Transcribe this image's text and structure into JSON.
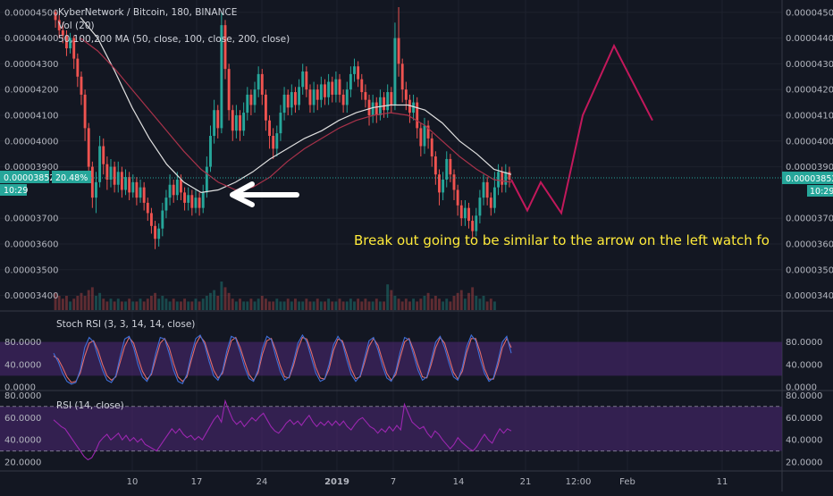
{
  "chart_data": {
    "type": "candlestick",
    "header": {
      "symbol_line": "KyberNetwork / Bitcoin, 180, BINANCE",
      "vol_label": "Vol (20)",
      "ma_label": "50,100,200 MA (50, close, 100, close, 200, close)"
    },
    "price_axis": {
      "ticks": [
        4.5e-05,
        4.4e-05,
        4.3e-05,
        4.2e-05,
        4.1e-05,
        4e-05,
        3.9e-05,
        3.7e-05,
        3.6e-05,
        3.5e-05,
        3.4e-05
      ],
      "tick_labels": [
        "0.00004500",
        "0.00004400",
        "0.00004300",
        "0.00004200",
        "0.00004100",
        "0.00004000",
        "0.00003900",
        "0.00003700",
        "0.00003600",
        "0.00003500",
        "0.00003400"
      ],
      "ylim": [
        3.35e-05,
        4.52e-05
      ],
      "current_price_label": "0.00003852",
      "countdown_label": "10:29",
      "percent_label": "20.48%"
    },
    "time_axis": {
      "labels": [
        "10",
        "17",
        "24",
        "2019",
        "7",
        "14",
        "21",
        "12:00",
        "Feb",
        "11"
      ]
    },
    "candles": [
      [
        4.5e-05,
        4.47e-05,
        4.51e-05,
        4.44e-05
      ],
      [
        4.47e-05,
        4.43e-05,
        4.49e-05,
        4.4e-05
      ],
      [
        4.43e-05,
        4.41e-05,
        4.46e-05,
        4.38e-05
      ],
      [
        4.41e-05,
        4.36e-05,
        4.43e-05,
        4.33e-05
      ],
      [
        4.36e-05,
        4.4e-05,
        4.42e-05,
        4.34e-05
      ],
      [
        4.4e-05,
        4.32e-05,
        4.41e-05,
        4.28e-05
      ],
      [
        4.32e-05,
        4.25e-05,
        4.34e-05,
        4.21e-05
      ],
      [
        4.25e-05,
        4.18e-05,
        4.27e-05,
        4.14e-05
      ],
      [
        4.18e-05,
        4.05e-05,
        4.2e-05,
        4e-05
      ],
      [
        4.05e-05,
        3.9e-05,
        4.07e-05,
        3.85e-05
      ],
      [
        3.9e-05,
        3.78e-05,
        3.92e-05,
        3.74e-05
      ],
      [
        3.78e-05,
        3.84e-05,
        3.88e-05,
        3.72e-05
      ],
      [
        3.84e-05,
        3.98e-05,
        4.02e-05,
        3.82e-05
      ],
      [
        3.98e-05,
        3.91e-05,
        4.01e-05,
        3.87e-05
      ],
      [
        3.91e-05,
        3.85e-05,
        3.94e-05,
        3.81e-05
      ],
      [
        3.85e-05,
        3.9e-05,
        3.93e-05,
        3.82e-05
      ],
      [
        3.9e-05,
        3.83e-05,
        3.92e-05,
        3.8e-05
      ],
      [
        3.83e-05,
        3.88e-05,
        3.92e-05,
        3.8e-05
      ],
      [
        3.88e-05,
        3.81e-05,
        3.9e-05,
        3.78e-05
      ],
      [
        3.81e-05,
        3.86e-05,
        3.89e-05,
        3.79e-05
      ],
      [
        3.86e-05,
        3.8e-05,
        3.88e-05,
        3.77e-05
      ],
      [
        3.8e-05,
        3.84e-05,
        3.87e-05,
        3.78e-05
      ],
      [
        3.84e-05,
        3.78e-05,
        3.86e-05,
        3.75e-05
      ],
      [
        3.78e-05,
        3.82e-05,
        3.85e-05,
        3.76e-05
      ],
      [
        3.82e-05,
        3.76e-05,
        3.84e-05,
        3.73e-05
      ],
      [
        3.76e-05,
        3.72e-05,
        3.78e-05,
        3.69e-05
      ],
      [
        3.72e-05,
        3.67e-05,
        3.74e-05,
        3.64e-05
      ],
      [
        3.67e-05,
        3.62e-05,
        3.69e-05,
        3.58e-05
      ],
      [
        3.62e-05,
        3.66e-05,
        3.68e-05,
        3.59e-05
      ],
      [
        3.66e-05,
        3.73e-05,
        3.76e-05,
        3.63e-05
      ],
      [
        3.73e-05,
        3.78e-05,
        3.81e-05,
        3.7e-05
      ],
      [
        3.78e-05,
        3.83e-05,
        3.87e-05,
        3.75e-05
      ],
      [
        3.83e-05,
        3.79e-05,
        3.85e-05,
        3.76e-05
      ],
      [
        3.79e-05,
        3.85e-05,
        3.88e-05,
        3.77e-05
      ],
      [
        3.85e-05,
        3.8e-05,
        3.87e-05,
        3.77e-05
      ],
      [
        3.8e-05,
        3.76e-05,
        3.82e-05,
        3.73e-05
      ],
      [
        3.76e-05,
        3.79e-05,
        3.82e-05,
        3.73e-05
      ],
      [
        3.79e-05,
        3.74e-05,
        3.81e-05,
        3.71e-05
      ],
      [
        3.74e-05,
        3.78e-05,
        3.81e-05,
        3.72e-05
      ],
      [
        3.78e-05,
        3.74e-05,
        3.8e-05,
        3.71e-05
      ],
      [
        3.74e-05,
        3.8e-05,
        3.83e-05,
        3.72e-05
      ],
      [
        3.8e-05,
        3.9e-05,
        3.94e-05,
        3.78e-05
      ],
      [
        3.9e-05,
        4.02e-05,
        4.06e-05,
        3.88e-05
      ],
      [
        4.02e-05,
        4.12e-05,
        4.16e-05,
        3.99e-05
      ],
      [
        4.12e-05,
        4.05e-05,
        4.14e-05,
        4.01e-05
      ],
      [
        4.05e-05,
        4.45e-05,
        4.5e-05,
        4.03e-05
      ],
      [
        4.45e-05,
        4.28e-05,
        4.47e-05,
        4.24e-05
      ],
      [
        4.28e-05,
        4.12e-05,
        4.3e-05,
        4.08e-05
      ],
      [
        4.12e-05,
        4.04e-05,
        4.14e-05,
        4e-05
      ],
      [
        4.04e-05,
        4.1e-05,
        4.14e-05,
        4.01e-05
      ],
      [
        4.1e-05,
        4.04e-05,
        4.12e-05,
        4e-05
      ],
      [
        4.04e-05,
        4.11e-05,
        4.15e-05,
        4.02e-05
      ],
      [
        4.11e-05,
        4.18e-05,
        4.21e-05,
        4.08e-05
      ],
      [
        4.18e-05,
        4.14e-05,
        4.2e-05,
        4.1e-05
      ],
      [
        4.14e-05,
        4.2e-05,
        4.23e-05,
        4.11e-05
      ],
      [
        4.2e-05,
        4.26e-05,
        4.29e-05,
        4.17e-05
      ],
      [
        4.26e-05,
        4.18e-05,
        4.28e-05,
        4.14e-05
      ],
      [
        4.18e-05,
        4.08e-05,
        4.2e-05,
        4.04e-05
      ],
      [
        4.08e-05,
        4.02e-05,
        4.1e-05,
        3.97e-05
      ],
      [
        4.02e-05,
        3.97e-05,
        4.05e-05,
        3.93e-05
      ],
      [
        3.97e-05,
        4.03e-05,
        4.06e-05,
        3.94e-05
      ],
      [
        4.03e-05,
        4.11e-05,
        4.14e-05,
        4e-05
      ],
      [
        4.11e-05,
        4.18e-05,
        4.21e-05,
        4.08e-05
      ],
      [
        4.18e-05,
        4.13e-05,
        4.2e-05,
        4.1e-05
      ],
      [
        4.13e-05,
        4.19e-05,
        4.22e-05,
        4.1e-05
      ],
      [
        4.19e-05,
        4.14e-05,
        4.21e-05,
        4.11e-05
      ],
      [
        4.14e-05,
        4.21e-05,
        4.24e-05,
        4.12e-05
      ],
      [
        4.21e-05,
        4.27e-05,
        4.3e-05,
        4.18e-05
      ],
      [
        4.27e-05,
        4.2e-05,
        4.29e-05,
        4.17e-05
      ],
      [
        4.2e-05,
        4.14e-05,
        4.22e-05,
        4.11e-05
      ],
      [
        4.14e-05,
        4.2e-05,
        4.23e-05,
        4.11e-05
      ],
      [
        4.2e-05,
        4.16e-05,
        4.22e-05,
        4.12e-05
      ],
      [
        4.16e-05,
        4.22e-05,
        4.25e-05,
        4.13e-05
      ],
      [
        4.22e-05,
        4.17e-05,
        4.24e-05,
        4.14e-05
      ],
      [
        4.17e-05,
        4.23e-05,
        4.26e-05,
        4.14e-05
      ],
      [
        4.23e-05,
        4.18e-05,
        4.25e-05,
        4.15e-05
      ],
      [
        4.18e-05,
        4.24e-05,
        4.27e-05,
        4.15e-05
      ],
      [
        4.24e-05,
        4.18e-05,
        4.26e-05,
        4.15e-05
      ],
      [
        4.18e-05,
        4.14e-05,
        4.2e-05,
        4.11e-05
      ],
      [
        4.14e-05,
        4.2e-05,
        4.23e-05,
        4.11e-05
      ],
      [
        4.2e-05,
        4.26e-05,
        4.29e-05,
        4.17e-05
      ],
      [
        4.26e-05,
        4.29e-05,
        4.32e-05,
        4.23e-05
      ],
      [
        4.29e-05,
        4.24e-05,
        4.31e-05,
        4.21e-05
      ],
      [
        4.24e-05,
        4.19e-05,
        4.26e-05,
        4.16e-05
      ],
      [
        4.19e-05,
        4.16e-05,
        4.22e-05,
        4.13e-05
      ],
      [
        4.16e-05,
        4.1e-05,
        4.18e-05,
        4.06e-05
      ],
      [
        4.1e-05,
        4.15e-05,
        4.18e-05,
        4.07e-05
      ],
      [
        4.15e-05,
        4.1e-05,
        4.17e-05,
        4.07e-05
      ],
      [
        4.1e-05,
        4.17e-05,
        4.2e-05,
        4.08e-05
      ],
      [
        4.17e-05,
        4.12e-05,
        4.19e-05,
        4.09e-05
      ],
      [
        4.12e-05,
        4.19e-05,
        4.22e-05,
        4.09e-05
      ],
      [
        4.19e-05,
        4.14e-05,
        4.21e-05,
        4.11e-05
      ],
      [
        4.14e-05,
        4.4e-05,
        4.46e-05,
        4.12e-05
      ],
      [
        4.4e-05,
        4.3e-05,
        4.52e-05,
        4.25e-05
      ],
      [
        4.3e-05,
        4.2e-05,
        4.32e-05,
        4.15e-05
      ],
      [
        4.2e-05,
        4.16e-05,
        4.23e-05,
        4.12e-05
      ],
      [
        4.16e-05,
        4.11e-05,
        4.18e-05,
        4.07e-05
      ],
      [
        4.11e-05,
        4.15e-05,
        4.18e-05,
        4.08e-05
      ],
      [
        4.15e-05,
        4.05e-05,
        4.17e-05,
        4.01e-05
      ],
      [
        4.05e-05,
        3.98e-05,
        4.07e-05,
        3.94e-05
      ],
      [
        3.98e-05,
        4.06e-05,
        4.09e-05,
        3.95e-05
      ],
      [
        4.06e-05,
        4.01e-05,
        4.08e-05,
        3.97e-05
      ],
      [
        4.01e-05,
        3.94e-05,
        4.03e-05,
        3.9e-05
      ],
      [
        3.94e-05,
        3.87e-05,
        3.96e-05,
        3.83e-05
      ],
      [
        3.87e-05,
        3.8e-05,
        3.89e-05,
        3.75e-05
      ],
      [
        3.8e-05,
        3.85e-05,
        3.88e-05,
        3.77e-05
      ],
      [
        3.85e-05,
        3.93e-05,
        3.96e-05,
        3.82e-05
      ],
      [
        3.93e-05,
        3.87e-05,
        3.95e-05,
        3.84e-05
      ],
      [
        3.87e-05,
        3.81e-05,
        3.89e-05,
        3.77e-05
      ],
      [
        3.81e-05,
        3.75e-05,
        3.83e-05,
        3.71e-05
      ],
      [
        3.75e-05,
        3.7e-05,
        3.77e-05,
        3.67e-05
      ],
      [
        3.7e-05,
        3.74e-05,
        3.77e-05,
        3.67e-05
      ],
      [
        3.74e-05,
        3.69e-05,
        3.76e-05,
        3.66e-05
      ],
      [
        3.69e-05,
        3.65e-05,
        3.71e-05,
        3.62e-05
      ],
      [
        3.65e-05,
        3.71e-05,
        3.74e-05,
        3.63e-05
      ],
      [
        3.71e-05,
        3.78e-05,
        3.81e-05,
        3.68e-05
      ],
      [
        3.78e-05,
        3.84e-05,
        3.87e-05,
        3.75e-05
      ],
      [
        3.84e-05,
        3.78e-05,
        3.86e-05,
        3.75e-05
      ],
      [
        3.78e-05,
        3.74e-05,
        3.8e-05,
        3.71e-05
      ],
      [
        3.74e-05,
        3.82e-05,
        3.88e-05,
        3.72e-05
      ],
      [
        3.82e-05,
        3.88e-05,
        3.91e-05,
        3.79e-05
      ],
      [
        3.88e-05,
        3.83e-05,
        3.9e-05,
        3.8e-05
      ],
      [
        3.83e-05,
        3.88e-05,
        3.91e-05,
        3.8e-05
      ],
      [
        3.88e-05,
        3.85e-05,
        3.9e-05,
        3.82e-05
      ]
    ],
    "moving_averages": [
      {
        "period": 50,
        "color": "#e0e0e0",
        "values": [
          4.48e-05,
          4.4e-05,
          4.27e-05,
          4.13e-05,
          4.01e-05,
          3.91e-05,
          3.84e-05,
          3.8e-05,
          3.81e-05,
          3.84e-05,
          3.88e-05,
          3.93e-05,
          3.97e-05,
          4.01e-05,
          4.04e-05,
          4.08e-05,
          4.11e-05,
          4.13e-05,
          4.14e-05,
          4.14e-05,
          4.12e-05,
          4.07e-05,
          4e-05,
          3.95e-05,
          3.89e-05,
          3.87e-05
        ]
      },
      {
        "period": 100,
        "color": "#a8324a",
        "values": [
          4.4e-05,
          4.35e-05,
          4.28e-05,
          4.2e-05,
          4.12e-05,
          4.04e-05,
          3.96e-05,
          3.89e-05,
          3.84e-05,
          3.81e-05,
          3.82e-05,
          3.86e-05,
          3.92e-05,
          3.97e-05,
          4.01e-05,
          4.05e-05,
          4.08e-05,
          4.1e-05,
          4.11e-05,
          4.1e-05,
          4.06e-05,
          4e-05,
          3.94e-05,
          3.89e-05,
          3.85e-05,
          3.84e-05
        ]
      }
    ],
    "projection_path": [
      3.85e-05,
      3.73e-05,
      3.84e-05,
      3.72e-05,
      4.1e-05,
      4.37e-05,
      4.08e-05
    ],
    "volume_relative": [
      0.6,
      0.5,
      0.4,
      0.5,
      0.3,
      0.4,
      0.5,
      0.6,
      0.5,
      0.7,
      0.8,
      0.5,
      0.6,
      0.4,
      0.3,
      0.4,
      0.3,
      0.4,
      0.3,
      0.3,
      0.4,
      0.3,
      0.3,
      0.4,
      0.3,
      0.4,
      0.5,
      0.6,
      0.4,
      0.5,
      0.4,
      0.3,
      0.4,
      0.3,
      0.3,
      0.4,
      0.3,
      0.3,
      0.4,
      0.3,
      0.4,
      0.5,
      0.6,
      0.7,
      0.5,
      1.0,
      0.8,
      0.6,
      0.4,
      0.3,
      0.4,
      0.3,
      0.3,
      0.4,
      0.3,
      0.4,
      0.5,
      0.4,
      0.3,
      0.3,
      0.4,
      0.3,
      0.3,
      0.4,
      0.3,
      0.4,
      0.3,
      0.3,
      0.4,
      0.3,
      0.3,
      0.4,
      0.3,
      0.3,
      0.4,
      0.3,
      0.3,
      0.4,
      0.3,
      0.3,
      0.4,
      0.3,
      0.4,
      0.3,
      0.4,
      0.3,
      0.3,
      0.4,
      0.3,
      0.3,
      0.9,
      0.7,
      0.5,
      0.4,
      0.3,
      0.4,
      0.3,
      0.4,
      0.3,
      0.4,
      0.5,
      0.6,
      0.4,
      0.5,
      0.4,
      0.3,
      0.4,
      0.3,
      0.5,
      0.6,
      0.7,
      0.4,
      0.6,
      0.8,
      0.5,
      0.4,
      0.5,
      0.3,
      0.4,
      0.3
    ],
    "stoch_rsi": {
      "label": "Stoch RSI (3, 3, 14, 14, close)",
      "tick_labels": [
        "80.0000",
        "40.0000",
        "0.0000"
      ],
      "ticks": [
        80,
        40,
        0
      ],
      "band": [
        20,
        80
      ],
      "k": [
        60,
        45,
        25,
        10,
        5,
        8,
        30,
        70,
        88,
        80,
        55,
        30,
        12,
        8,
        20,
        55,
        85,
        90,
        70,
        40,
        18,
        10,
        25,
        60,
        88,
        85,
        60,
        30,
        10,
        6,
        22,
        58,
        86,
        92,
        75,
        45,
        20,
        12,
        28,
        65,
        90,
        86,
        62,
        35,
        15,
        10,
        30,
        68,
        90,
        84,
        55,
        28,
        12,
        18,
        45,
        78,
        92,
        80,
        52,
        25,
        10,
        14,
        40,
        75,
        90,
        78,
        48,
        22,
        10,
        20,
        52,
        82,
        88,
        66,
        38,
        16,
        10,
        28,
        62,
        88,
        84,
        58,
        30,
        12,
        18,
        48,
        80,
        90,
        70,
        42,
        18,
        12,
        35,
        72,
        92,
        82,
        50,
        24,
        10,
        16,
        46,
        80,
        90,
        60
      ],
      "d": [
        55,
        50,
        35,
        18,
        8,
        10,
        25,
        55,
        78,
        82,
        65,
        40,
        20,
        12,
        18,
        45,
        72,
        88,
        78,
        52,
        28,
        14,
        22,
        50,
        78,
        86,
        70,
        42,
        18,
        10,
        18,
        48,
        76,
        90,
        80,
        55,
        30,
        16,
        24,
        55,
        82,
        88,
        70,
        45,
        22,
        12,
        25,
        58,
        82,
        86,
        65,
        38,
        18,
        16,
        38,
        68,
        88,
        85,
        62,
        35,
        16,
        14,
        32,
        65,
        85,
        82,
        58,
        32,
        15,
        18,
        44,
        72,
        86,
        74,
        48,
        24,
        12,
        22,
        52,
        80,
        86,
        66,
        40,
        18,
        16,
        40,
        70,
        88,
        78,
        52,
        26,
        14,
        28,
        62,
        86,
        86,
        62,
        32,
        14,
        14,
        38,
        70,
        86,
        70
      ]
    },
    "rsi": {
      "label": "RSI (14, close)",
      "tick_labels": [
        "80.0000",
        "60.0000",
        "40.0000",
        "20.0000"
      ],
      "ticks": [
        80,
        60,
        40,
        20
      ],
      "band": [
        30,
        70
      ],
      "values": [
        58,
        55,
        52,
        50,
        45,
        40,
        35,
        30,
        25,
        22,
        24,
        30,
        38,
        42,
        45,
        40,
        43,
        46,
        40,
        44,
        39,
        42,
        38,
        41,
        36,
        34,
        32,
        30,
        35,
        40,
        45,
        50,
        46,
        50,
        45,
        42,
        44,
        40,
        43,
        40,
        46,
        52,
        58,
        62,
        56,
        75,
        66,
        58,
        54,
        57,
        52,
        56,
        60,
        57,
        61,
        64,
        58,
        52,
        48,
        46,
        50,
        55,
        58,
        54,
        57,
        53,
        58,
        62,
        56,
        52,
        56,
        53,
        57,
        53,
        57,
        53,
        57,
        52,
        49,
        54,
        58,
        60,
        56,
        52,
        50,
        46,
        50,
        47,
        52,
        48,
        53,
        49,
        72,
        64,
        56,
        53,
        50,
        52,
        46,
        42,
        48,
        45,
        40,
        36,
        32,
        36,
        42,
        38,
        35,
        32,
        30,
        34,
        40,
        45,
        40,
        37,
        44,
        50,
        46,
        50,
        48
      ]
    },
    "annotation": "Break out going to be similar to the arrow on the left watch fo"
  },
  "colors": {
    "background": "#131722",
    "up_candle": "#26a69a",
    "down_candle": "#ef5350",
    "projection": "#c2185b",
    "stoch_k": "#3f6fd8",
    "stoch_d": "#e06b6b",
    "rsi_line": "#9c27b0",
    "band_fill": "#4a2670",
    "price_tag": "#26a69a"
  }
}
